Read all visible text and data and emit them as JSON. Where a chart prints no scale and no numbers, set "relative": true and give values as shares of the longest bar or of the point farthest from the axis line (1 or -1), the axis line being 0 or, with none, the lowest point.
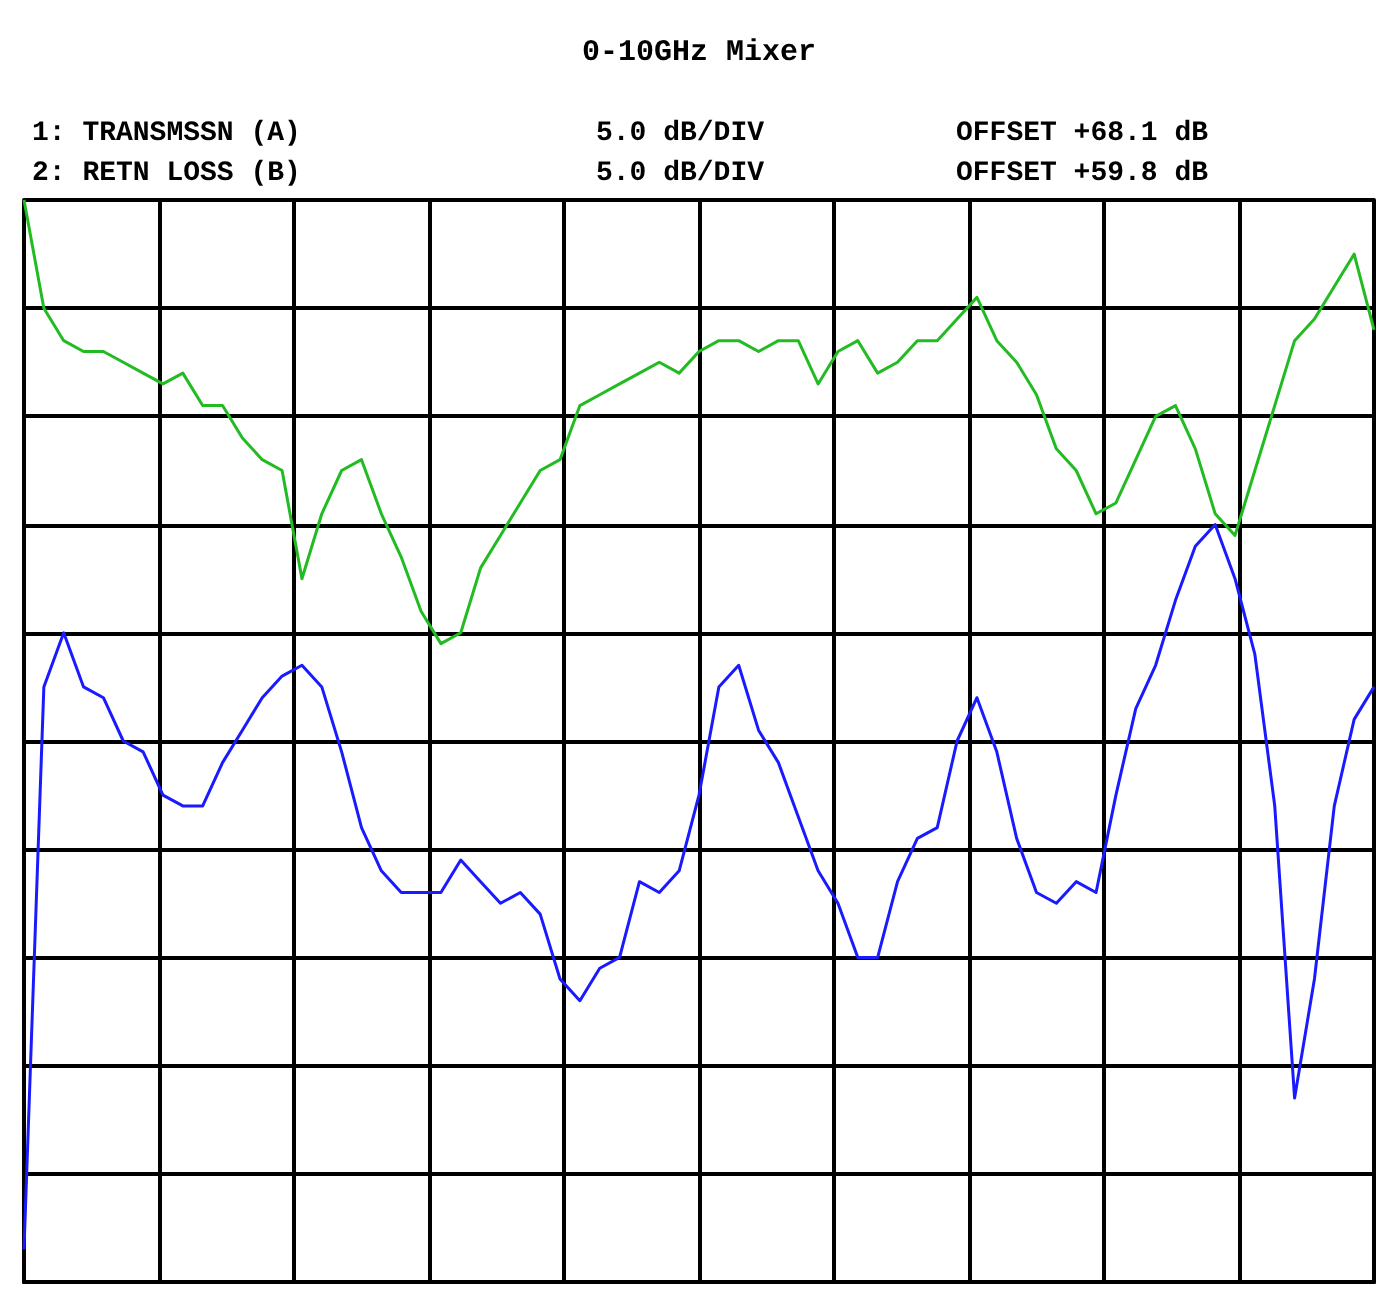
{
  "chart_data": {
    "type": "line",
    "title": "0-10GHz Mixer",
    "relative": true,
    "grid": true,
    "marker": "none",
    "line_style": "solid",
    "annotations": [
      "1: TRANSMSSN (A)",
      "5.0 dB/DIV",
      "OFFSET +68.1 dB",
      "2: RETN LOSS (B)",
      "5.0 dB/DIV",
      "OFFSET +59.8 dB"
    ],
    "categories": [
      null,
      null,
      null,
      null,
      null,
      null,
      null,
      null,
      null,
      null,
      null,
      null,
      null,
      null,
      null,
      null,
      null,
      null,
      null,
      null,
      null,
      null,
      null,
      null,
      null,
      null,
      null,
      null,
      null,
      null,
      null,
      null,
      null,
      null,
      null,
      null,
      null,
      null,
      null,
      null,
      null,
      null,
      null,
      null,
      null,
      null,
      null,
      null,
      null,
      null,
      null,
      null,
      null,
      null,
      null,
      null,
      null,
      null,
      null,
      null,
      null,
      null,
      null,
      null,
      null,
      null,
      null,
      null,
      null
    ],
    "series": [
      {
        "color": "#22bb22",
        "values": [
          1.0,
          0.9,
          0.87,
          0.86,
          0.86,
          0.85,
          0.84,
          0.83,
          0.84,
          0.81,
          0.81,
          0.78,
          0.76,
          0.75,
          0.65,
          0.71,
          0.75,
          0.76,
          0.71,
          0.67,
          0.62,
          0.59,
          0.6,
          0.66,
          0.69,
          0.72,
          0.75,
          0.76,
          0.81,
          0.82,
          0.83,
          0.84,
          0.85,
          0.84,
          0.86,
          0.87,
          0.87,
          0.86,
          0.87,
          0.87,
          0.83,
          0.86,
          0.87,
          0.84,
          0.85,
          0.87,
          0.87,
          0.89,
          0.91,
          0.87,
          0.85,
          0.82,
          0.77,
          0.75,
          0.71,
          0.72,
          0.76,
          0.8,
          0.81,
          0.77,
          0.71,
          0.69,
          0.75,
          0.81,
          0.87,
          0.89,
          0.92,
          0.95,
          0.88
        ]
      },
      {
        "color": "#1a1aff",
        "values": [
          0.03,
          0.55,
          0.6,
          0.55,
          0.54,
          0.5,
          0.49,
          0.45,
          0.44,
          0.44,
          0.48,
          0.51,
          0.54,
          0.56,
          0.57,
          0.55,
          0.49,
          0.42,
          0.38,
          0.36,
          0.36,
          0.36,
          0.39,
          0.37,
          0.35,
          0.36,
          0.34,
          0.28,
          0.26,
          0.29,
          0.3,
          0.37,
          0.36,
          0.38,
          0.45,
          0.55,
          0.57,
          0.51,
          0.48,
          0.43,
          0.38,
          0.35,
          0.3,
          0.3,
          0.37,
          0.41,
          0.42,
          0.5,
          0.54,
          0.49,
          0.41,
          0.36,
          0.35,
          0.37,
          0.36,
          0.45,
          0.53,
          0.57,
          0.63,
          0.68,
          0.7,
          0.65,
          0.58,
          0.44,
          0.17,
          0.28,
          0.44,
          0.52,
          0.55
        ]
      }
    ]
  }
}
